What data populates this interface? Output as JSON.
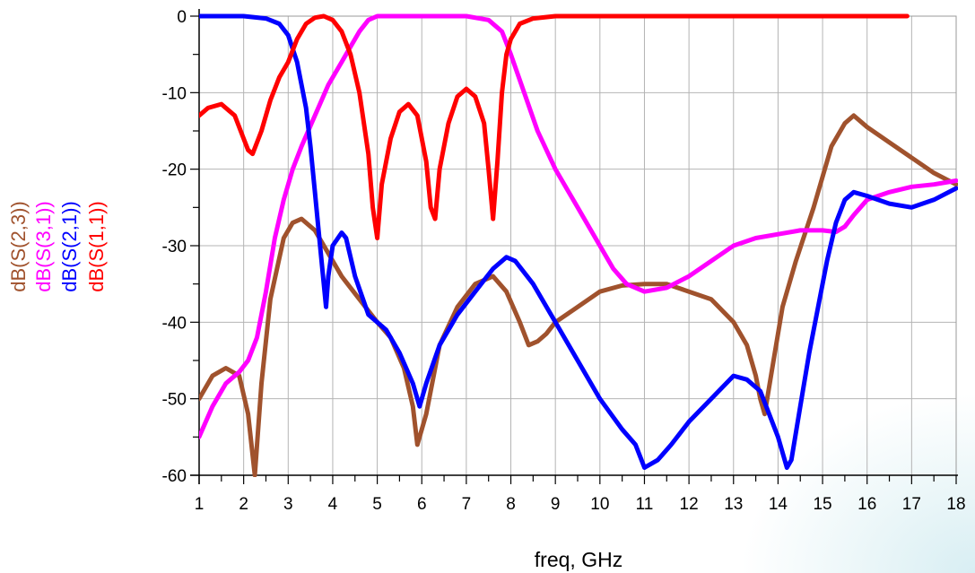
{
  "chart_data": {
    "type": "line",
    "title": "",
    "xlabel": "freq, GHz",
    "ylabel": "",
    "xlim": [
      1,
      18
    ],
    "ylim": [
      -60,
      0
    ],
    "xticks": [
      1,
      2,
      3,
      4,
      5,
      6,
      7,
      8,
      9,
      10,
      11,
      12,
      13,
      14,
      15,
      16,
      17,
      18
    ],
    "yticks": [
      0,
      -10,
      -20,
      -30,
      -40,
      -50,
      -60
    ],
    "grid": true,
    "legend_position": "left, rotated vertical",
    "series": [
      {
        "name": "dB(S(2,3))",
        "color": "#a0522d",
        "x": [
          1.0,
          1.3,
          1.6,
          1.9,
          2.1,
          2.25,
          2.4,
          2.6,
          2.9,
          3.1,
          3.3,
          3.6,
          3.9,
          4.2,
          4.6,
          5.0,
          5.3,
          5.6,
          5.8,
          5.9,
          6.1,
          6.4,
          6.8,
          7.2,
          7.6,
          7.9,
          8.2,
          8.4,
          8.6,
          8.8,
          9.0,
          9.5,
          10.0,
          10.5,
          11.0,
          11.5,
          12.0,
          12.5,
          13.0,
          13.3,
          13.5,
          13.6,
          13.7,
          13.9,
          14.1,
          14.4,
          14.8,
          15.2,
          15.5,
          15.7,
          16.0,
          16.5,
          17.0,
          17.5,
          18.0
        ],
        "values": [
          -50,
          -47,
          -46,
          -47,
          -52,
          -60,
          -48,
          -37,
          -29,
          -27,
          -26.5,
          -28,
          -31,
          -34,
          -37,
          -40,
          -42,
          -46,
          -51,
          -56,
          -52,
          -43,
          -38,
          -35,
          -34,
          -36,
          -40,
          -43,
          -42.5,
          -41.5,
          -40,
          -38,
          -36,
          -35.2,
          -35,
          -35,
          -36,
          -37,
          -40,
          -43,
          -47,
          -50,
          -52,
          -45,
          -38,
          -32,
          -25,
          -17,
          -14,
          -13,
          -14.5,
          -16.5,
          -18.5,
          -20.5,
          -22
        ]
      },
      {
        "name": "dB(S(3,1))",
        "color": "#ff00ff",
        "x": [
          1.0,
          1.3,
          1.6,
          1.9,
          2.1,
          2.3,
          2.5,
          2.7,
          2.9,
          3.1,
          3.3,
          3.6,
          3.9,
          4.2,
          4.4,
          4.6,
          4.8,
          5.0,
          5.5,
          6.0,
          6.5,
          7.0,
          7.5,
          7.8,
          8.0,
          8.3,
          8.6,
          9.0,
          9.5,
          10.0,
          10.3,
          10.6,
          11.0,
          11.5,
          12.0,
          12.5,
          13.0,
          13.5,
          14.0,
          14.5,
          15.0,
          15.3,
          15.5,
          15.7,
          16.0,
          16.5,
          17.0,
          17.5,
          18.0
        ],
        "values": [
          -55,
          -51,
          -48,
          -46.5,
          -45,
          -42,
          -36,
          -29,
          -24,
          -20,
          -17,
          -13,
          -9,
          -6,
          -4,
          -2,
          -0.5,
          0,
          0,
          0,
          0,
          0,
          -0.5,
          -2,
          -5,
          -10,
          -15,
          -20,
          -25,
          -30,
          -33,
          -35,
          -36,
          -35.5,
          -34,
          -32,
          -30,
          -29,
          -28.5,
          -28,
          -28,
          -28.2,
          -27.5,
          -26,
          -24,
          -23,
          -22.3,
          -22,
          -21.5
        ]
      },
      {
        "name": "dB(S(2,1))",
        "color": "#0000ff",
        "x": [
          1.0,
          1.5,
          2.0,
          2.5,
          2.8,
          3.0,
          3.2,
          3.4,
          3.5,
          3.6,
          3.7,
          3.8,
          3.85,
          3.9,
          4.0,
          4.2,
          4.3,
          4.5,
          4.8,
          5.2,
          5.5,
          5.8,
          5.95,
          6.1,
          6.4,
          6.8,
          7.2,
          7.6,
          7.9,
          8.1,
          8.5,
          9.0,
          9.5,
          10.0,
          10.5,
          10.8,
          11.0,
          11.3,
          11.6,
          12.0,
          12.5,
          13.0,
          13.3,
          13.6,
          13.8,
          14.0,
          14.2,
          14.3,
          14.5,
          14.7,
          14.9,
          15.1,
          15.3,
          15.5,
          15.7,
          16.0,
          16.5,
          17.0,
          17.5,
          18.0
        ],
        "values": [
          0,
          0,
          0,
          -0.3,
          -1,
          -2.5,
          -6,
          -12,
          -17,
          -23,
          -29,
          -35,
          -38,
          -34,
          -30,
          -28.3,
          -29,
          -34,
          -39,
          -41,
          -44,
          -48,
          -51,
          -48,
          -43,
          -39,
          -36,
          -33,
          -31.5,
          -32,
          -35,
          -40,
          -45,
          -50,
          -54,
          -56,
          -59,
          -58,
          -56,
          -53,
          -50,
          -47,
          -47.5,
          -49,
          -52,
          -55,
          -59,
          -58,
          -51,
          -44,
          -38,
          -32,
          -27,
          -24,
          -23,
          -23.5,
          -24.5,
          -25,
          -24,
          -22.5
        ]
      },
      {
        "name": "dB(S(1,1))",
        "color": "#ff0000",
        "x": [
          1.0,
          1.2,
          1.5,
          1.8,
          2.0,
          2.1,
          2.2,
          2.4,
          2.6,
          2.8,
          3.0,
          3.2,
          3.4,
          3.6,
          3.8,
          4.0,
          4.2,
          4.4,
          4.6,
          4.8,
          4.9,
          5.0,
          5.1,
          5.3,
          5.5,
          5.7,
          5.9,
          6.1,
          6.2,
          6.3,
          6.4,
          6.6,
          6.8,
          7.0,
          7.2,
          7.4,
          7.5,
          7.6,
          7.7,
          7.8,
          7.9,
          8.0,
          8.2,
          8.5,
          9.0,
          10.0,
          11.0,
          12.0,
          13.0,
          14.0,
          15.0,
          16.0,
          16.9
        ],
        "values": [
          -13,
          -12,
          -11.5,
          -13,
          -16,
          -17.5,
          -18,
          -15,
          -11,
          -8,
          -6,
          -3,
          -1,
          -0.2,
          0,
          -0.5,
          -2,
          -5,
          -10,
          -18,
          -25,
          -29,
          -22,
          -16,
          -12.5,
          -11.5,
          -13,
          -19,
          -25,
          -26.5,
          -20,
          -14,
          -10.5,
          -9.5,
          -10.5,
          -14,
          -20,
          -26.5,
          -19,
          -10,
          -5,
          -3,
          -1,
          -0.3,
          0,
          0,
          0,
          0,
          0,
          0,
          0,
          0,
          0
        ]
      }
    ]
  }
}
